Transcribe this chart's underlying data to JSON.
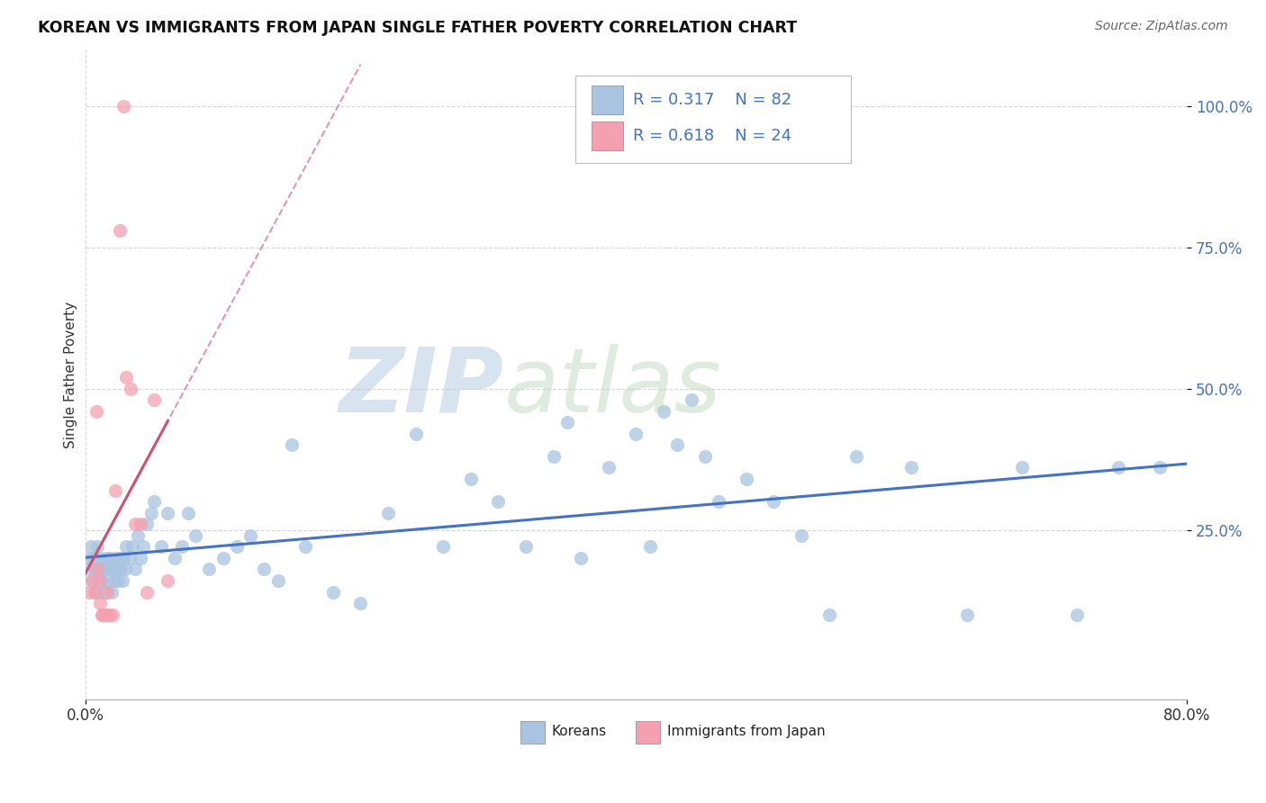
{
  "title": "KOREAN VS IMMIGRANTS FROM JAPAN SINGLE FATHER POVERTY CORRELATION CHART",
  "source": "Source: ZipAtlas.com",
  "ylabel": "Single Father Poverty",
  "y_tick_labels": [
    "25.0%",
    "50.0%",
    "75.0%",
    "100.0%"
  ],
  "y_tick_values": [
    0.25,
    0.5,
    0.75,
    1.0
  ],
  "x_range": [
    0.0,
    0.8
  ],
  "y_range": [
    -0.05,
    1.1
  ],
  "legend_r1": "R = 0.317",
  "legend_n1": "N = 82",
  "legend_r2": "R = 0.618",
  "legend_n2": "N = 24",
  "korean_color": "#a8c4e0",
  "japan_color": "#f4a0b0",
  "korean_line_color": "#4472c4",
  "japan_line_color": "#d05070",
  "legend_text_color": "#4472c4",
  "background_color": "#ffffff",
  "koreans_x": [
    0.002,
    0.003,
    0.004,
    0.005,
    0.006,
    0.007,
    0.008,
    0.009,
    0.01,
    0.011,
    0.012,
    0.013,
    0.014,
    0.015,
    0.016,
    0.017,
    0.018,
    0.019,
    0.02,
    0.021,
    0.022,
    0.023,
    0.024,
    0.025,
    0.026,
    0.027,
    0.028,
    0.029,
    0.03,
    0.032,
    0.034,
    0.036,
    0.038,
    0.04,
    0.042,
    0.045,
    0.048,
    0.05,
    0.055,
    0.06,
    0.065,
    0.07,
    0.075,
    0.08,
    0.09,
    0.1,
    0.11,
    0.12,
    0.13,
    0.14,
    0.15,
    0.16,
    0.18,
    0.2,
    0.22,
    0.24,
    0.26,
    0.28,
    0.3,
    0.32,
    0.34,
    0.35,
    0.36,
    0.38,
    0.4,
    0.41,
    0.42,
    0.43,
    0.44,
    0.45,
    0.46,
    0.48,
    0.5,
    0.52,
    0.54,
    0.56,
    0.6,
    0.64,
    0.68,
    0.72,
    0.75,
    0.78
  ],
  "koreans_y": [
    0.2,
    0.18,
    0.22,
    0.16,
    0.2,
    0.18,
    0.14,
    0.22,
    0.18,
    0.2,
    0.16,
    0.18,
    0.14,
    0.2,
    0.16,
    0.18,
    0.2,
    0.14,
    0.18,
    0.16,
    0.2,
    0.18,
    0.16,
    0.2,
    0.18,
    0.16,
    0.2,
    0.18,
    0.22,
    0.2,
    0.22,
    0.18,
    0.24,
    0.2,
    0.22,
    0.26,
    0.28,
    0.3,
    0.22,
    0.28,
    0.2,
    0.22,
    0.28,
    0.24,
    0.18,
    0.2,
    0.22,
    0.24,
    0.18,
    0.16,
    0.4,
    0.22,
    0.14,
    0.12,
    0.28,
    0.42,
    0.22,
    0.34,
    0.3,
    0.22,
    0.38,
    0.44,
    0.2,
    0.36,
    0.42,
    0.22,
    0.46,
    0.4,
    0.48,
    0.38,
    0.3,
    0.34,
    0.3,
    0.24,
    0.1,
    0.38,
    0.36,
    0.1,
    0.36,
    0.1,
    0.36,
    0.36
  ],
  "japan_x": [
    0.003,
    0.005,
    0.007,
    0.008,
    0.009,
    0.01,
    0.011,
    0.012,
    0.013,
    0.014,
    0.015,
    0.016,
    0.018,
    0.02,
    0.022,
    0.025,
    0.028,
    0.03,
    0.033,
    0.036,
    0.04,
    0.045,
    0.05,
    0.06
  ],
  "japan_y": [
    0.14,
    0.16,
    0.14,
    0.46,
    0.18,
    0.16,
    0.12,
    0.1,
    0.1,
    0.1,
    0.1,
    0.14,
    0.1,
    0.1,
    0.32,
    0.78,
    1.0,
    0.52,
    0.5,
    0.26,
    0.26,
    0.14,
    0.48,
    0.16
  ]
}
